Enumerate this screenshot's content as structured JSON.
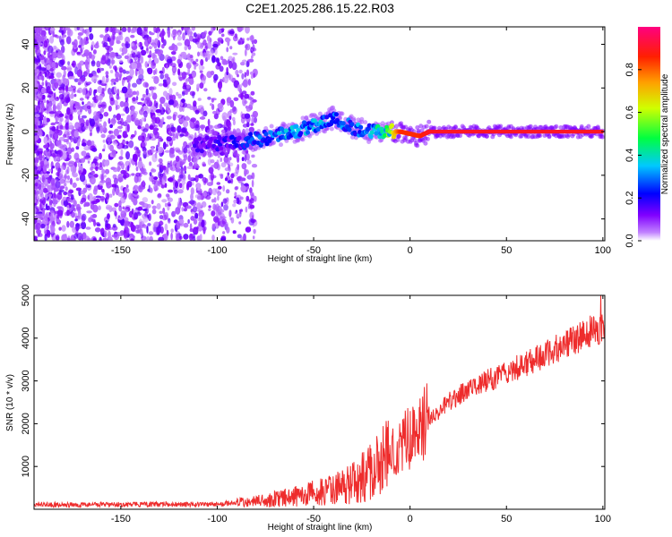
{
  "title": "C2E1.2025.286.15.22.R03",
  "chart_data": [
    {
      "type": "heatmap",
      "title": "C2E1.2025.286.15.22.R03",
      "xlabel": "Height of straight line (km)",
      "ylabel": "Frequency (Hz)",
      "xlim": [
        -195,
        101
      ],
      "ylim": [
        -50,
        48
      ],
      "xticks": [
        -150,
        -100,
        -50,
        0,
        50,
        100
      ],
      "yticks": [
        40,
        20,
        0,
        -20,
        -40
      ],
      "colorbar": {
        "label": "Normalized spectral amplitude",
        "range": [
          0.0,
          1.0
        ],
        "ticks": [
          0.0,
          0.2,
          0.4,
          0.6,
          0.8
        ],
        "colormap": [
          "#ffffff",
          "#8000ff",
          "#0000ff",
          "#00ffff",
          "#00ff00",
          "#ffff00",
          "#ff8000",
          "#ff0000",
          "#ff0080"
        ]
      },
      "ridge": [
        {
          "height_km": -110,
          "frequency_hz": -6,
          "amplitude": 0.15
        },
        {
          "height_km": -90,
          "frequency_hz": -5,
          "amplitude": 0.2
        },
        {
          "height_km": -75,
          "frequency_hz": -3,
          "amplitude": 0.3
        },
        {
          "height_km": -60,
          "frequency_hz": 0,
          "amplitude": 0.35
        },
        {
          "height_km": -50,
          "frequency_hz": 3,
          "amplitude": 0.35
        },
        {
          "height_km": -40,
          "frequency_hz": 6,
          "amplitude": 0.3
        },
        {
          "height_km": -30,
          "frequency_hz": 2,
          "amplitude": 0.3
        },
        {
          "height_km": -20,
          "frequency_hz": 0,
          "amplitude": 0.35
        },
        {
          "height_km": -12,
          "frequency_hz": 0,
          "amplitude": 0.5
        },
        {
          "height_km": -5,
          "frequency_hz": 0,
          "amplitude": 0.85
        },
        {
          "height_km": 5,
          "frequency_hz": -2,
          "amplitude": 0.85
        },
        {
          "height_km": 10,
          "frequency_hz": 0,
          "amplitude": 0.9
        },
        {
          "height_km": 50,
          "frequency_hz": 0,
          "amplitude": 0.9
        },
        {
          "height_km": 100,
          "frequency_hz": 0,
          "amplitude": 0.9
        }
      ]
    },
    {
      "type": "line",
      "xlabel": "Height of straight line (km)",
      "ylabel": "SNR (10 * v/v)",
      "xlim": [
        -195,
        101
      ],
      "ylim": [
        0,
        5000
      ],
      "xticks": [
        -150,
        -100,
        -50,
        0,
        50,
        100
      ],
      "yticks": [
        1000,
        2000,
        3000,
        4000,
        5000
      ],
      "color": "#ee2c2c",
      "series": [
        {
          "name": "SNR",
          "x": [
            -195,
            -150,
            -100,
            -80,
            -60,
            -50,
            -40,
            -30,
            -20,
            -15,
            -10,
            -5,
            0,
            10,
            20,
            30,
            40,
            50,
            60,
            70,
            80,
            90,
            95,
            100
          ],
          "y": [
            100,
            110,
            120,
            180,
            300,
            380,
            450,
            600,
            900,
            1100,
            1300,
            1500,
            1700,
            2100,
            2500,
            2800,
            3000,
            3200,
            3400,
            3600,
            3850,
            4050,
            4200,
            4250
          ]
        }
      ]
    }
  ]
}
